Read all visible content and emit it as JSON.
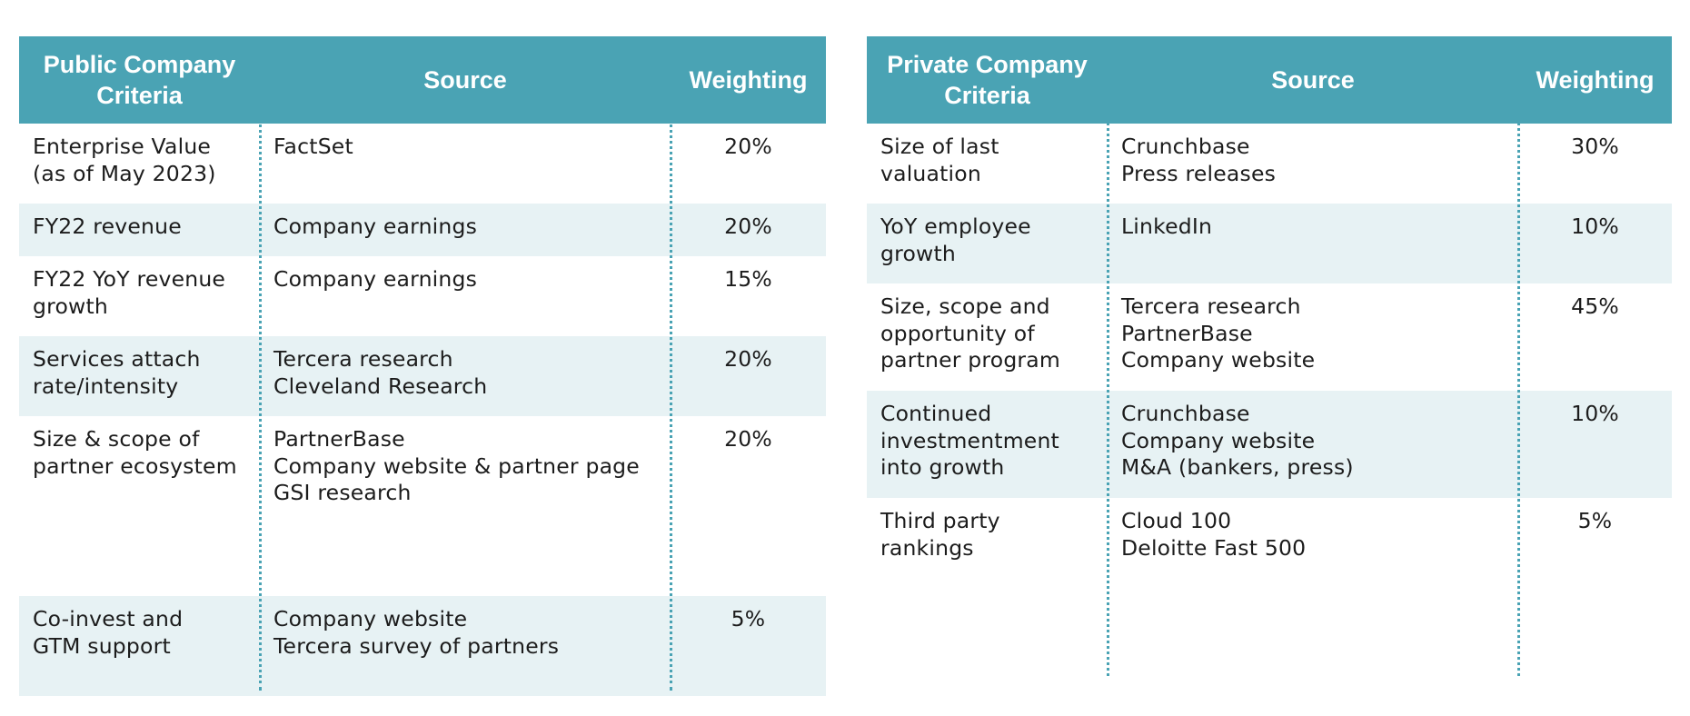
{
  "public": {
    "headers": [
      "Public Company Criteria",
      "Source",
      "Weighting"
    ],
    "rows": [
      {
        "criteria": [
          "Enterprise Value",
          "(as of May 2023)"
        ],
        "source": [
          "FactSet"
        ],
        "weighting": "20%"
      },
      {
        "criteria": [
          "FY22 revenue"
        ],
        "source": [
          "Company earnings"
        ],
        "weighting": "20%"
      },
      {
        "criteria": [
          "FY22 YoY revenue",
          "growth"
        ],
        "source": [
          "Company earnings"
        ],
        "weighting": "15%"
      },
      {
        "criteria": [
          "Services attach",
          "rate/intensity"
        ],
        "source": [
          "Tercera research",
          "Cleveland Research"
        ],
        "weighting": "20%"
      },
      {
        "criteria": [
          "Size & scope of",
          "partner ecosystem"
        ],
        "source": [
          "PartnerBase",
          "Company website & partner page",
          "GSI research"
        ],
        "weighting": "20%"
      },
      {
        "criteria": [
          "Co-invest and",
          "GTM support"
        ],
        "source": [
          "Company website",
          "Tercera survey of partners"
        ],
        "weighting": "5%"
      }
    ]
  },
  "private": {
    "headers": [
      "Private Company Criteria",
      "Source",
      "Weighting"
    ],
    "rows": [
      {
        "criteria": [
          "Size of last",
          "valuation"
        ],
        "source": [
          "Crunchbase",
          "Press releases"
        ],
        "weighting": "30%"
      },
      {
        "criteria": [
          "YoY employee",
          "growth"
        ],
        "source": [
          "LinkedIn"
        ],
        "weighting": "10%"
      },
      {
        "criteria": [
          "Size, scope and",
          "opportunity of",
          "partner program"
        ],
        "source": [
          "Tercera research",
          "PartnerBase",
          "Company website"
        ],
        "weighting": "45%"
      },
      {
        "criteria": [
          "Continued",
          "investmentment",
          "into growth"
        ],
        "source": [
          "Crunchbase",
          "Company website",
          "M&A (bankers, press)"
        ],
        "weighting": "10%"
      },
      {
        "criteria": [
          "Third party",
          "rankings"
        ],
        "source": [
          "Cloud 100",
          "Deloitte Fast 500"
        ],
        "weighting": "5%"
      }
    ]
  },
  "colors": {
    "header_bg": "#4aa3b4",
    "shaded_row": "#e7f2f4",
    "divider": "#4aa3b4"
  }
}
